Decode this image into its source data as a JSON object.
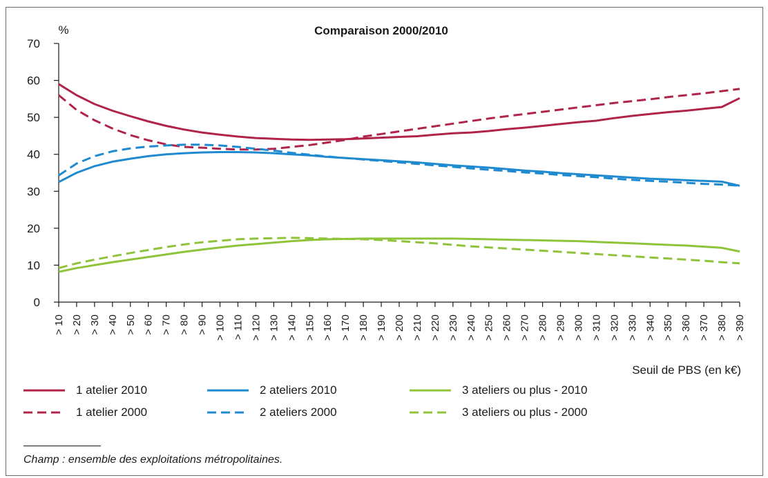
{
  "colors": {
    "one_atelier": "#b0244a",
    "two_ateliers": "#1f8ad0",
    "three_ateliers": "#8fc43a",
    "axis": "#1a1a1a"
  },
  "chart_data": {
    "type": "line",
    "title": "Comparaison 2000/2010",
    "ylabel": "%",
    "xlabel": "Seuil de PBS (en k€)",
    "ylim": [
      0,
      70
    ],
    "yticks": [
      0,
      10,
      20,
      30,
      40,
      50,
      60,
      70
    ],
    "grid": false,
    "legend_position": "bottom",
    "categories": [
      "> 10",
      "> 20",
      "> 30",
      "> 40",
      "> 50",
      "> 60",
      "> 70",
      "> 80",
      "> 90",
      "> 100",
      "> 110",
      "> 120",
      "> 130",
      "> 140",
      "> 150",
      "> 160",
      "> 170",
      "> 180",
      "> 190",
      "> 200",
      "> 210",
      "> 220",
      "> 230",
      "> 240",
      "> 250",
      "> 260",
      "> 270",
      "> 280",
      "> 290",
      "> 300",
      "> 310",
      "> 320",
      "> 330",
      "> 340",
      "> 350",
      "> 360",
      "> 370",
      "> 380",
      "> 390"
    ],
    "series": [
      {
        "name": "1 atelier 2010",
        "color_key": "one_atelier",
        "dashed": false,
        "values": [
          59,
          56,
          53.6,
          51.8,
          50.3,
          48.9,
          47.7,
          46.7,
          45.9,
          45.3,
          44.8,
          44.4,
          44.2,
          44.0,
          43.9,
          44.0,
          44.1,
          44.3,
          44.5,
          44.7,
          44.9,
          45.3,
          45.7,
          45.9,
          46.3,
          46.8,
          47.2,
          47.7,
          48.2,
          48.7,
          49.1,
          49.8,
          50.4,
          50.9,
          51.4,
          51.8,
          52.3,
          52.8,
          55.2
        ]
      },
      {
        "name": "1 atelier 2000",
        "color_key": "one_atelier",
        "dashed": true,
        "values": [
          56,
          52,
          49.2,
          47.0,
          45.2,
          43.8,
          42.7,
          42.0,
          41.8,
          41.5,
          41.3,
          41.3,
          41.5,
          42.0,
          42.5,
          43.2,
          43.9,
          44.8,
          45.5,
          46.2,
          46.9,
          47.6,
          48.3,
          49.0,
          49.7,
          50.3,
          50.9,
          51.5,
          52.1,
          52.7,
          53.3,
          53.9,
          54.4,
          54.9,
          55.5,
          56.0,
          56.5,
          57.1,
          57.7
        ]
      },
      {
        "name": "2 ateliers 2010",
        "color_key": "two_ateliers",
        "dashed": false,
        "values": [
          32.5,
          35,
          36.8,
          38.0,
          38.8,
          39.5,
          40.0,
          40.3,
          40.5,
          40.6,
          40.6,
          40.5,
          40.3,
          40.0,
          39.7,
          39.3,
          39.0,
          38.7,
          38.4,
          38.1,
          37.8,
          37.4,
          37.0,
          36.7,
          36.4,
          36.0,
          35.6,
          35.3,
          34.9,
          34.6,
          34.3,
          34.0,
          33.7,
          33.4,
          33.2,
          33.0,
          32.8,
          32.6,
          31.5
        ]
      },
      {
        "name": "2 ateliers 2000",
        "color_key": "two_ateliers",
        "dashed": true,
        "values": [
          34.3,
          37.5,
          39.5,
          40.8,
          41.6,
          42.1,
          42.4,
          42.6,
          42.6,
          42.4,
          42.0,
          41.5,
          41.0,
          40.4,
          39.9,
          39.4,
          39.0,
          38.6,
          38.2,
          37.8,
          37.4,
          37.0,
          36.6,
          36.2,
          35.8,
          35.5,
          35.1,
          34.8,
          34.4,
          34.1,
          33.8,
          33.4,
          33.1,
          32.8,
          32.6,
          32.3,
          32.0,
          31.8,
          31.5
        ]
      },
      {
        "name": "3 ateliers ou plus - 2010",
        "color_key": "three_ateliers",
        "dashed": false,
        "values": [
          8.2,
          9.2,
          10,
          10.8,
          11.5,
          12.2,
          12.9,
          13.6,
          14.2,
          14.8,
          15.3,
          15.7,
          16.1,
          16.5,
          16.8,
          17.0,
          17.1,
          17.2,
          17.2,
          17.2,
          17.2,
          17.2,
          17.2,
          17.1,
          17.0,
          16.9,
          16.8,
          16.7,
          16.6,
          16.5,
          16.3,
          16.1,
          15.9,
          15.7,
          15.5,
          15.3,
          15.0,
          14.7,
          13.7
        ]
      },
      {
        "name": "3 ateliers ou plus - 2000",
        "color_key": "three_ateliers",
        "dashed": true,
        "values": [
          9.2,
          10.5,
          11.5,
          12.4,
          13.3,
          14.1,
          14.9,
          15.6,
          16.2,
          16.6,
          17.0,
          17.2,
          17.3,
          17.4,
          17.3,
          17.2,
          17.1,
          17.0,
          16.8,
          16.5,
          16.2,
          15.9,
          15.5,
          15.1,
          14.8,
          14.5,
          14.2,
          13.9,
          13.6,
          13.3,
          13.0,
          12.7,
          12.4,
          12.1,
          11.8,
          11.5,
          11.2,
          10.8,
          10.5
        ]
      }
    ]
  },
  "legend": {
    "items": [
      {
        "label": "1 atelier 2010",
        "color_key": "one_atelier",
        "dashed": false
      },
      {
        "label": "2 ateliers 2010",
        "color_key": "two_ateliers",
        "dashed": false
      },
      {
        "label": "3 ateliers ou plus - 2010",
        "color_key": "three_ateliers",
        "dashed": false
      },
      {
        "label": "1 atelier 2000",
        "color_key": "one_atelier",
        "dashed": true
      },
      {
        "label": "2 ateliers 2000",
        "color_key": "two_ateliers",
        "dashed": true
      },
      {
        "label": "3 ateliers ou plus - 2000",
        "color_key": "three_ateliers",
        "dashed": true
      }
    ]
  },
  "footnote": "Champ : ensemble des exploitations métropolitaines."
}
